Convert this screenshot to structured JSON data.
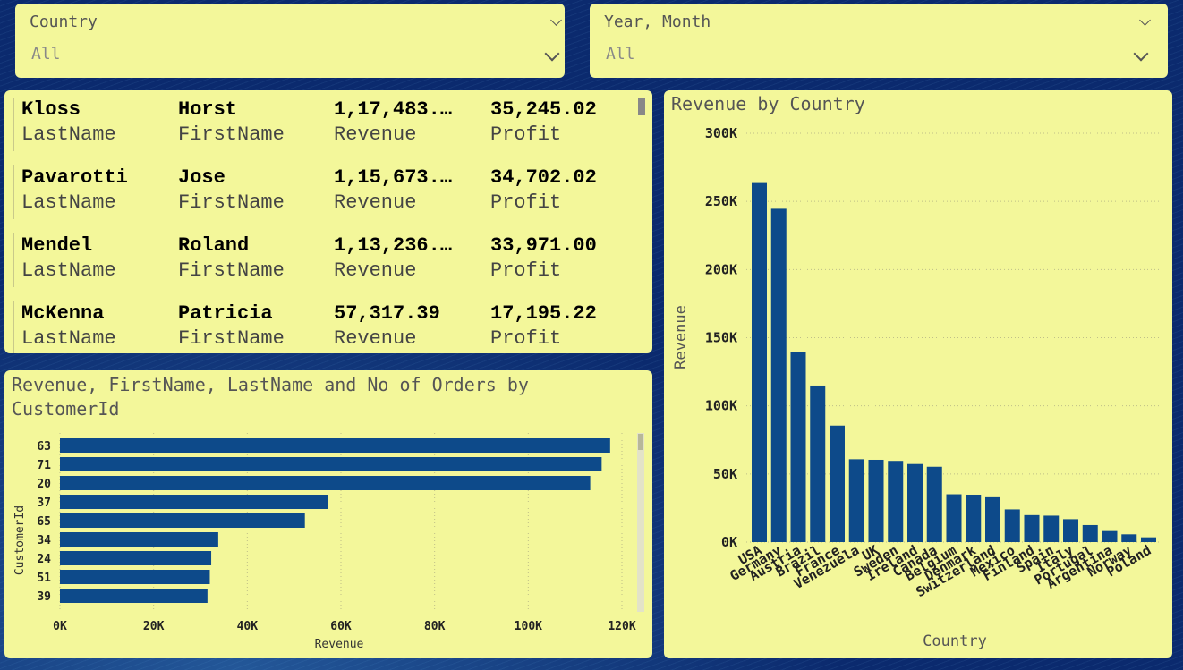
{
  "slicers": {
    "country": {
      "label": "Country",
      "value": "All"
    },
    "year_month": {
      "label": "Year, Month",
      "value": "All"
    }
  },
  "multirow": {
    "rows": [
      {
        "last": "Kloss",
        "first": "Horst",
        "revenue": "1,17,483.…",
        "profit": "35,245.02"
      },
      {
        "last": "Pavarotti",
        "first": "Jose",
        "revenue": "1,15,673.…",
        "profit": "34,702.02"
      },
      {
        "last": "Mendel",
        "first": "Roland",
        "revenue": "1,13,236.…",
        "profit": "33,971.00"
      },
      {
        "last": "McKenna",
        "first": "Patricia",
        "revenue": "57,317.39",
        "profit": "17,195.22"
      }
    ],
    "labels": {
      "last": "LastName",
      "first": "FirstName",
      "revenue": "Revenue",
      "profit": "Profit"
    }
  },
  "colors": {
    "bar": "#0d4a8a",
    "panel": "#f3f79a",
    "background": "#0b2a6e"
  },
  "chart_data": [
    {
      "type": "bar",
      "orientation": "horizontal",
      "title": "Revenue, FirstName, LastName and No of Orders by CustomerId",
      "xlabel": "Revenue",
      "ylabel": "CustomerId",
      "categories": [
        "63",
        "71",
        "20",
        "37",
        "65",
        "34",
        "24",
        "51",
        "39"
      ],
      "values": [
        117483,
        115673,
        113236,
        57317,
        52300,
        33800,
        32300,
        32000,
        31500
      ],
      "xlim": [
        0,
        120000
      ],
      "xticks": [
        "0K",
        "20K",
        "40K",
        "60K",
        "80K",
        "100K",
        "120K"
      ]
    },
    {
      "type": "bar",
      "title": "Revenue by Country",
      "xlabel": "Country",
      "ylabel": "Revenue",
      "categories": [
        "USA",
        "Germany",
        "Austria",
        "Brazil",
        "France",
        "Venezuela",
        "UK",
        "Sweden",
        "Ireland",
        "Canada",
        "Belgium",
        "Denmark",
        "Switzerland",
        "Mexico",
        "Finland",
        "Spain",
        "Italy",
        "Portugal",
        "Argentina",
        "Norway",
        "Poland"
      ],
      "values": [
        263500,
        244600,
        139700,
        114900,
        85500,
        60800,
        60400,
        59600,
        57300,
        55300,
        35100,
        34800,
        32900,
        24000,
        19800,
        19400,
        16800,
        12500,
        8100,
        5700,
        3500
      ],
      "ylim": [
        0,
        300000
      ],
      "yticks": [
        "0K",
        "50K",
        "100K",
        "150K",
        "200K",
        "250K",
        "300K"
      ]
    }
  ]
}
